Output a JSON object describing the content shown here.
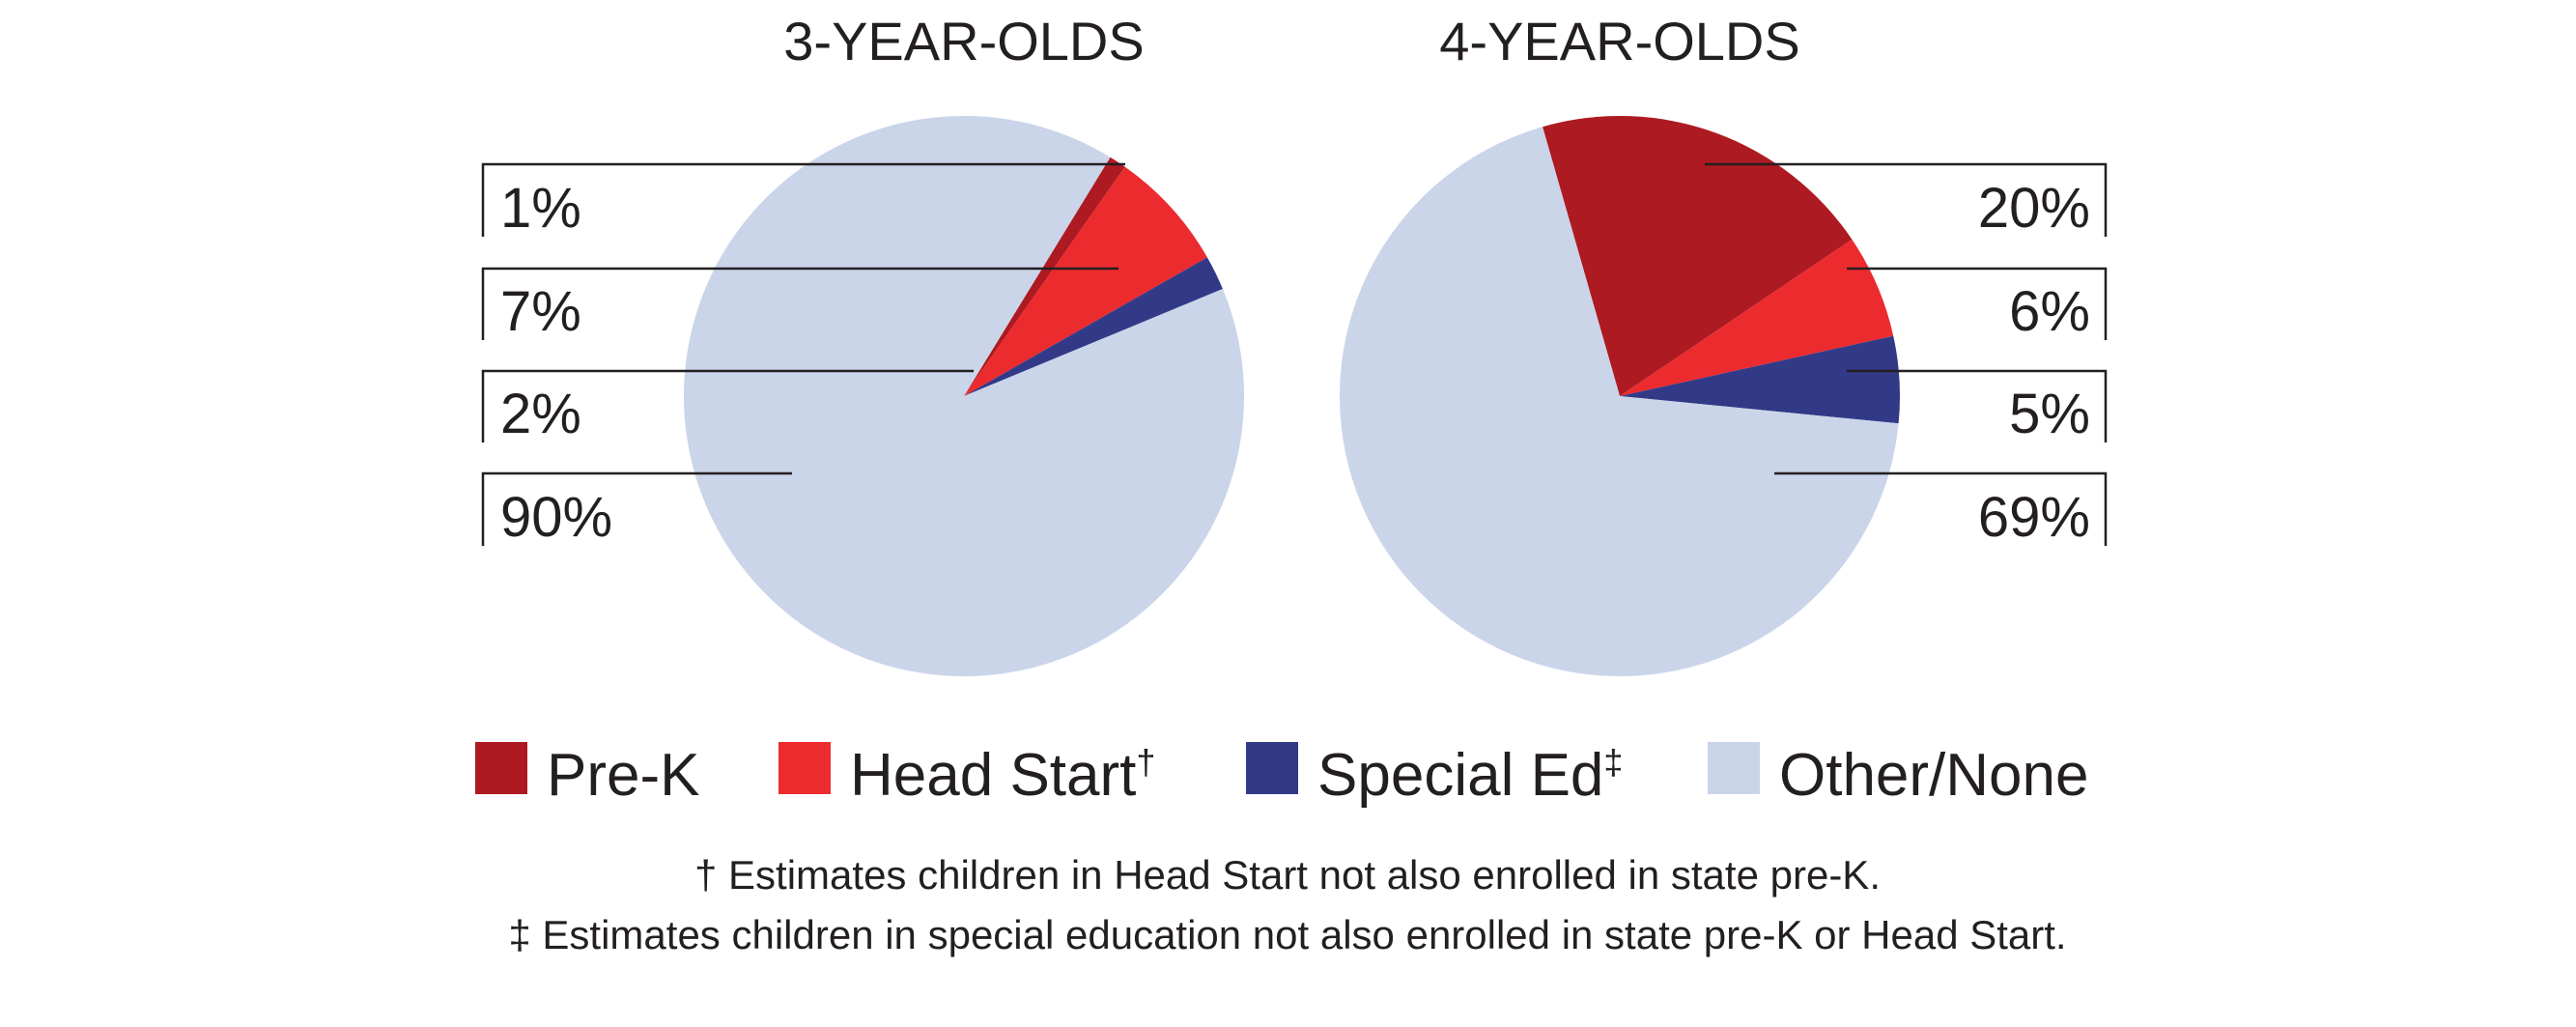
{
  "chart_data": [
    {
      "type": "pie",
      "title": "3-YEAR-OLDS",
      "categories": [
        "Pre-K",
        "Head Start",
        "Special Ed",
        "Other/None"
      ],
      "values": [
        1,
        7,
        2,
        90
      ],
      "labels": [
        "1%",
        "7%",
        "2%",
        "90%"
      ],
      "label_side": "left"
    },
    {
      "type": "pie",
      "title": "4-YEAR-OLDS",
      "categories": [
        "Pre-K",
        "Head Start",
        "Special Ed",
        "Other/None"
      ],
      "values": [
        20,
        6,
        5,
        69
      ],
      "labels": [
        "20%",
        "6%",
        "5%",
        "69%"
      ],
      "label_side": "right"
    }
  ],
  "colors": {
    "Pre-K": "#ae1a22",
    "Head Start": "#ec2b2e",
    "Special Ed": "#323a88",
    "Other/None": "#cad5ea"
  },
  "legend": {
    "placement": "bottom",
    "items": [
      {
        "label": "Pre-K",
        "mark": ""
      },
      {
        "label": "Head Start",
        "mark": "†"
      },
      {
        "label": "Special Ed",
        "mark": "‡"
      },
      {
        "label": "Other/None",
        "mark": ""
      }
    ]
  },
  "footnotes": [
    "† Estimates children in Head Start not also enrolled in state pre-K.",
    "‡ Estimates children in special education not also enrolled in state pre-K or Head Start."
  ]
}
